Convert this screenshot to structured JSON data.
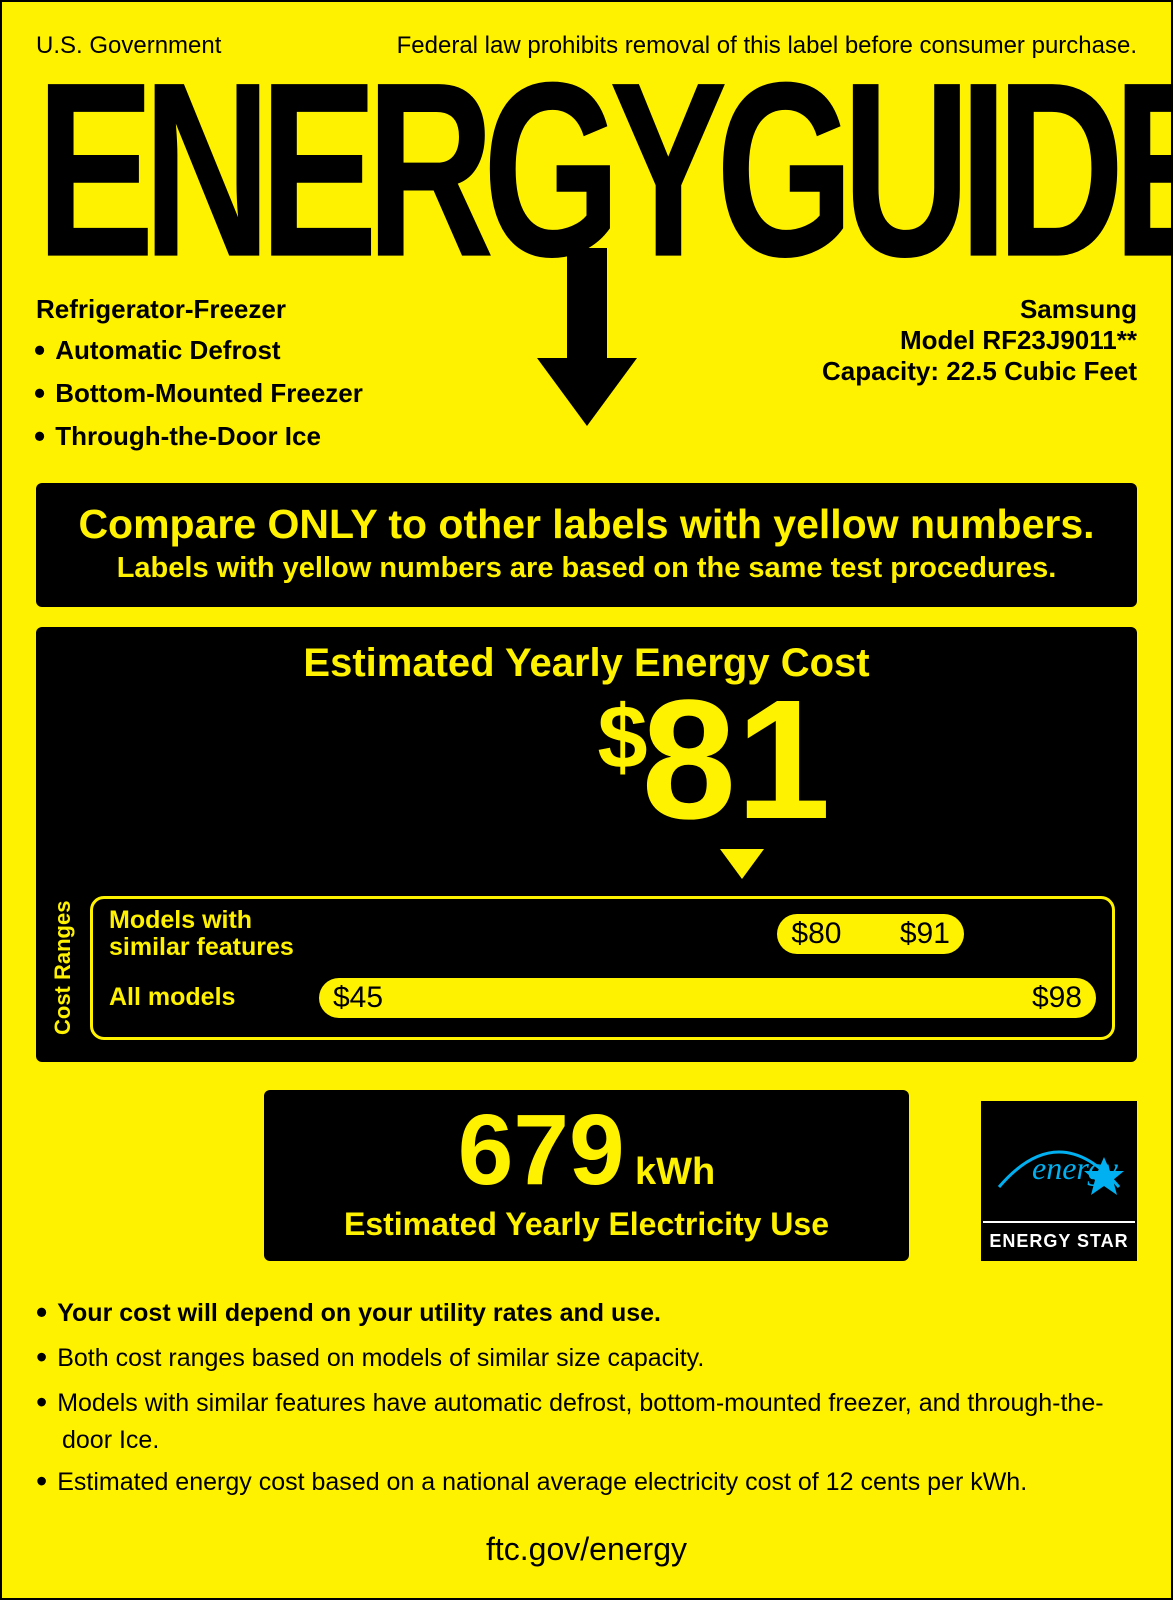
{
  "colors": {
    "bg": "#fff200",
    "fg": "#000000",
    "estar_accent": "#00b0f0"
  },
  "header": {
    "left": "U.S. Government",
    "right": "Federal law prohibits removal of this label before consumer purchase.",
    "logo": "ENERGYGUIDE"
  },
  "product": {
    "type": "Refrigerator-Freezer",
    "features": [
      "Automatic Defrost",
      "Bottom-Mounted Freezer",
      "Through-the-Door Ice"
    ],
    "brand": "Samsung",
    "model": "Model RF23J9011**",
    "capacity": "Capacity: 22.5 Cubic Feet"
  },
  "compare": {
    "line1": "Compare ONLY to other labels with yellow numbers.",
    "line2": "Labels with yellow numbers are based on the same test procedures."
  },
  "cost": {
    "title": "Estimated Yearly Energy Cost",
    "value": "81",
    "value_display": "$81",
    "pointer_position_pct": 63,
    "ranges_label": "Cost Ranges",
    "similar": {
      "label": "Models with similar features",
      "low": "$80",
      "high": "$91",
      "bar_left_pct": 59,
      "bar_width_pct": 24
    },
    "all": {
      "label": "All models",
      "low": "$45",
      "high": "$98",
      "bar_left_pct": 0,
      "bar_width_pct": 100
    }
  },
  "kwh": {
    "value": "679",
    "unit": "kWh",
    "sub": "Estimated Yearly Electricity Use"
  },
  "estar": {
    "script": "energy",
    "label": "ENERGY STAR"
  },
  "footnotes": [
    {
      "text": "Your cost will depend on your utility rates and use.",
      "bold": true
    },
    {
      "text": "Both cost ranges based on models of similar size capacity.",
      "bold": false
    },
    {
      "text": "Models with similar features have automatic defrost, bottom-mounted freezer, and through-the-door Ice.",
      "bold": false
    },
    {
      "text": "Estimated energy cost based on a national average electricity cost of 12 cents per kWh.",
      "bold": false
    }
  ],
  "ftc": "ftc.gov/energy"
}
